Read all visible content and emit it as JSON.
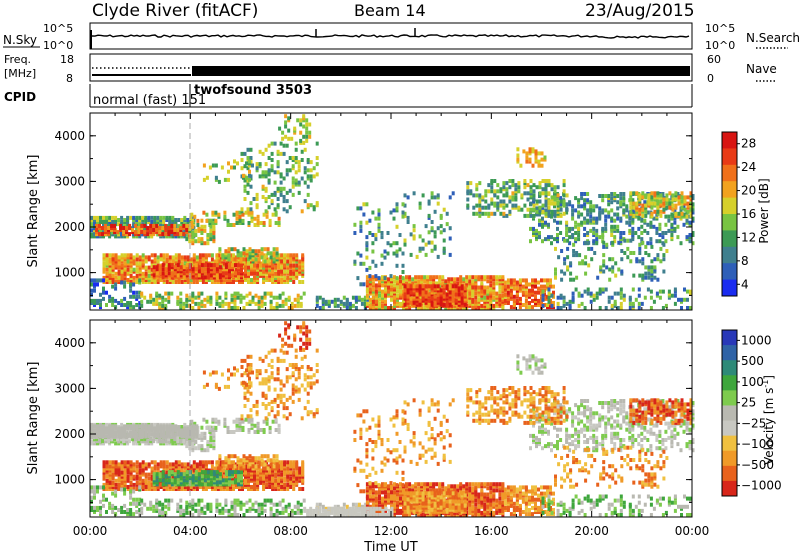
{
  "header": {
    "station": "Clyde River (fitACF)",
    "beam": "Beam 14",
    "date": "23/Aug/2015"
  },
  "panels": {
    "nsky": {
      "left_label": "N.Sky",
      "right_label": "N.Search",
      "left_ticks": [
        "10^5",
        "10^0"
      ],
      "right_ticks": [
        "10^5",
        "10^0"
      ]
    },
    "freq": {
      "left_label_top": "Freq.",
      "left_label_bottom": "[MHz]",
      "right_label": "Nave",
      "left_ticks": [
        "18",
        "8"
      ],
      "right_ticks": [
        "60",
        "0"
      ]
    },
    "cpid": {
      "label": "CPID",
      "segments": [
        "normal (fast) 151",
        "twofsound 3503"
      ]
    }
  },
  "chart_data": [
    {
      "type": "heatmap",
      "name": "power",
      "ylabel": "Slant Range [km]",
      "ylim": [
        180,
        4500
      ],
      "yticks": [
        "1000",
        "2000",
        "3000",
        "4000"
      ],
      "xlim_hours": [
        0,
        24
      ],
      "colorbar": {
        "label": "Power [dB]",
        "tick_labels": [
          "4",
          "8",
          "12",
          "16",
          "20",
          "24",
          "28"
        ],
        "colors": [
          "#1a2cf0",
          "#2e5fb8",
          "#3f7f8e",
          "#3c9a55",
          "#78c442",
          "#d6d02b",
          "#f2a21e",
          "#f0701a",
          "#e83a16",
          "#d81512"
        ]
      }
    },
    {
      "type": "heatmap",
      "name": "velocity",
      "ylabel": "Slant Range [km]",
      "ylim": [
        180,
        4500
      ],
      "yticks": [
        "1000",
        "2000",
        "3000",
        "4000"
      ],
      "xlim_hours": [
        0,
        24
      ],
      "xticks": [
        "00:00",
        "04:00",
        "08:00",
        "12:00",
        "16:00",
        "20:00",
        "00:00"
      ],
      "xlabel": "Time UT",
      "colorbar": {
        "label_main": "Velocity",
        "label_units": "[m s",
        "label_exp": "-1",
        "label_close": "]",
        "tick_labels": [
          "1000",
          "500",
          "100",
          "25",
          "−25",
          "−100",
          "−500",
          "−1000"
        ],
        "colors": [
          "#2838b8",
          "#2f63a6",
          "#2e8a78",
          "#3ea63c",
          "#7ecb4e",
          "#b9b9b1",
          "#c8c8c2",
          "#f0c040",
          "#f09a28",
          "#e8621c",
          "#d8261a"
        ]
      }
    }
  ]
}
